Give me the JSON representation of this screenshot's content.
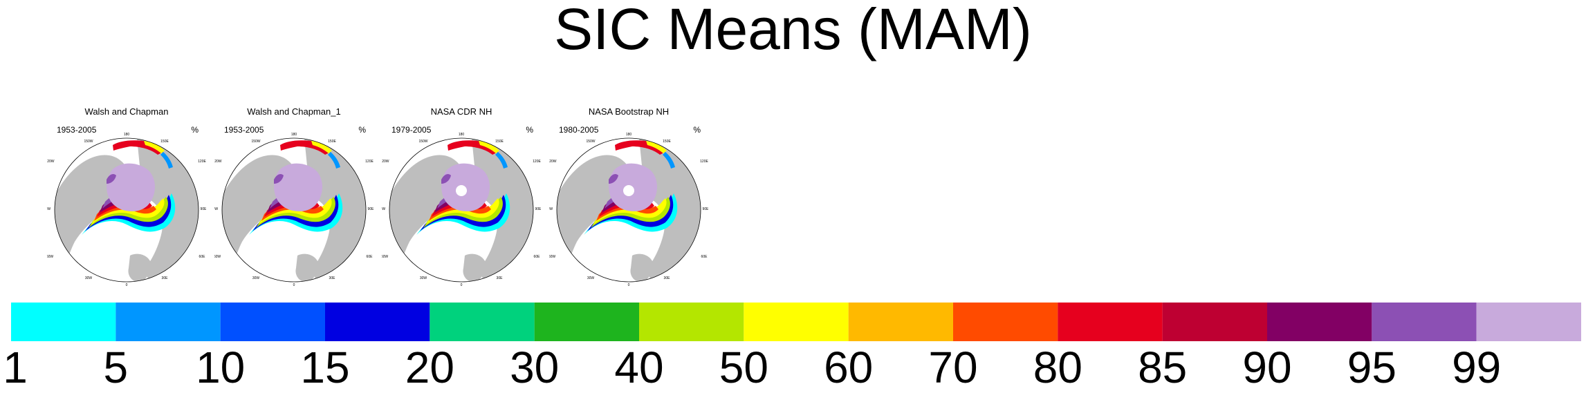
{
  "chart_data": {
    "type": "heatmap",
    "title": "SIC Means (MAM)",
    "panels": [
      {
        "title": "Walsh and Chapman",
        "years": "1953-2005",
        "units": "%",
        "pole_hole": false
      },
      {
        "title": "Walsh and Chapman_1",
        "years": "1953-2005",
        "units": "%",
        "pole_hole": false
      },
      {
        "title": "NASA CDR NH",
        "years": "1979-2005",
        "units": "%",
        "pole_hole": true
      },
      {
        "title": "NASA Bootstrap NH",
        "years": "1980-2005",
        "units": "%",
        "pole_hole": true
      }
    ],
    "map_labels": {
      "top": "180",
      "upper_left": "150W",
      "upper_right": "150E",
      "left_top": "120W",
      "right_top": "120E",
      "left": "90W",
      "right": "90E",
      "left_bottom": "60W",
      "right_bottom": "60E",
      "lower_left": "30W",
      "lower_right": "30E",
      "bottom": "0"
    },
    "colorbar": {
      "levels": [
        "1",
        "5",
        "10",
        "15",
        "20",
        "30",
        "40",
        "50",
        "60",
        "70",
        "80",
        "85",
        "90",
        "95",
        "99"
      ],
      "colors": [
        "#00ffff",
        "#0096ff",
        "#0050ff",
        "#0000e1",
        "#00d27d",
        "#1eb41e",
        "#b4e600",
        "#ffff00",
        "#ffb900",
        "#ff4b00",
        "#e6001e",
        "#be0032",
        "#820064",
        "#8c50b4",
        "#c8aadc"
      ]
    },
    "colors": {
      "land": "#bebebe",
      "ocean": "#ffffff",
      "coast": "#333333"
    }
  }
}
